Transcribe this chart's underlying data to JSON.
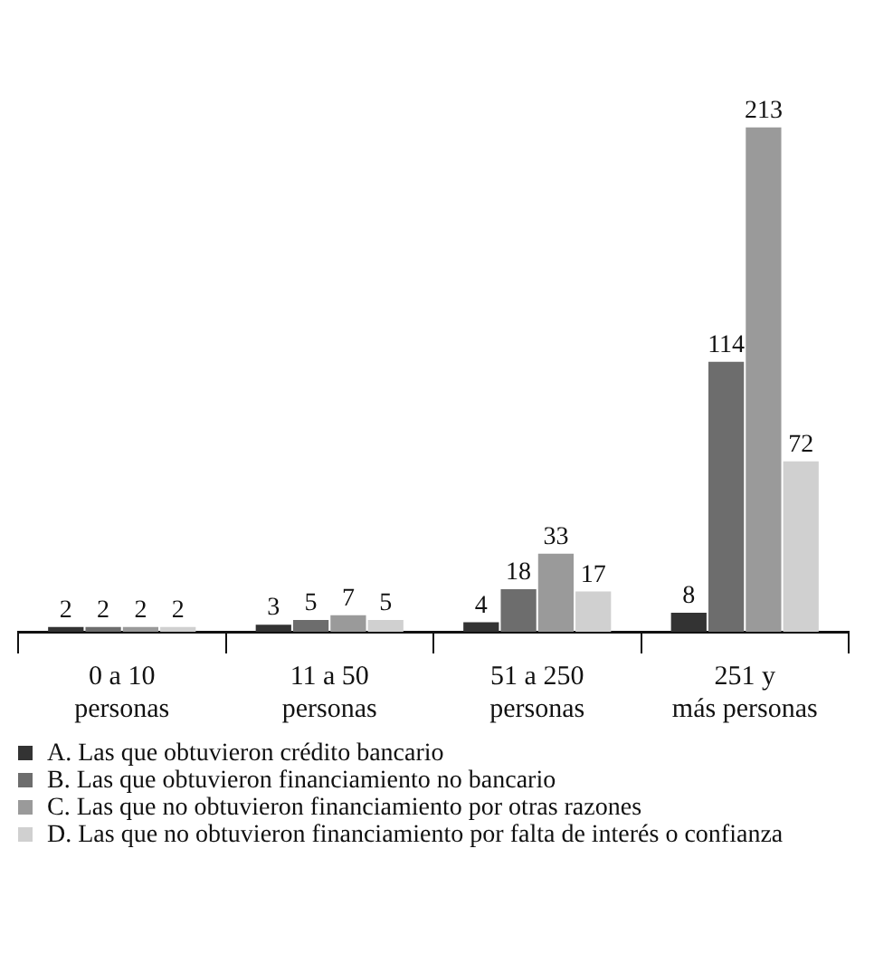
{
  "chart_data": {
    "type": "bar",
    "categories": [
      "0 a 10\npersonas",
      "11 a 50\npersonas",
      "51 a 250\npersonas",
      "251 y\nmás personas"
    ],
    "series": [
      {
        "name": "A. Las que obtuvieron crédito bancario",
        "color": "#333333",
        "values": [
          2,
          3,
          4,
          8
        ]
      },
      {
        "name": "B. Las que obtuvieron financiamiento no bancario",
        "color": "#6d6d6d",
        "values": [
          2,
          5,
          18,
          114
        ]
      },
      {
        "name": "C. Las que no obtuvieron financiamiento por otras razones",
        "color": "#9a9a9a",
        "values": [
          2,
          7,
          33,
          213
        ]
      },
      {
        "name": "D. Las que no obtuvieron financiamiento por falta de interés o confianza",
        "color": "#d0d0d0",
        "values": [
          2,
          5,
          17,
          72
        ]
      }
    ],
    "data_labels": true,
    "legend": "bottom"
  }
}
